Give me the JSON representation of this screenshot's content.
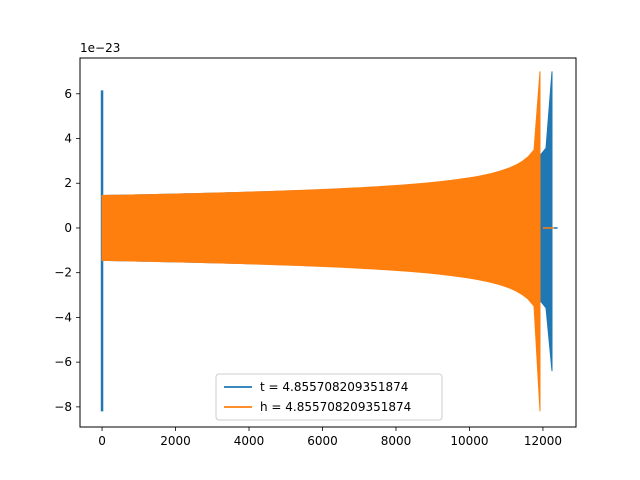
{
  "chart_data": {
    "type": "line",
    "title": "",
    "xlabel": "",
    "ylabel": "",
    "offset_label": "1e−23",
    "xlim": [
      -600,
      12900
    ],
    "ylim": [
      -8.9,
      7.6
    ],
    "x_ticks": [
      0,
      2000,
      4000,
      6000,
      8000,
      10000,
      12000
    ],
    "x_tick_labels": [
      "0",
      "2000",
      "4000",
      "6000",
      "8000",
      "10000",
      "12000"
    ],
    "y_ticks": [
      -8,
      -6,
      -4,
      -2,
      0,
      2,
      4,
      6
    ],
    "y_tick_labels": [
      "−8",
      "−6",
      "−4",
      "−2",
      "0",
      "2",
      "4",
      "6"
    ],
    "grid": false,
    "legend_position": "lower center",
    "series": [
      {
        "name": "t = 4.855708209351874",
        "color": "#1f77b4",
        "kind": "chirp-waveform",
        "start_spike": {
          "x": 0,
          "ymin": -8.2,
          "ymax": 6.15
        },
        "inspiral": {
          "x_start": 0,
          "x_end": 12300,
          "amp_start": 1.45,
          "amp_end": 7.0,
          "min_peak": -6.4
        },
        "ringdown_end": 12300
      },
      {
        "name": "h = 4.855708209351874",
        "color": "#ff7f0e",
        "kind": "chirp-waveform",
        "inspiral": {
          "x_start": 0,
          "x_end": 12000,
          "amp_start": 1.45,
          "amp_end": 7.0,
          "min_peak": -8.2
        },
        "flat_after": 12000
      }
    ]
  }
}
